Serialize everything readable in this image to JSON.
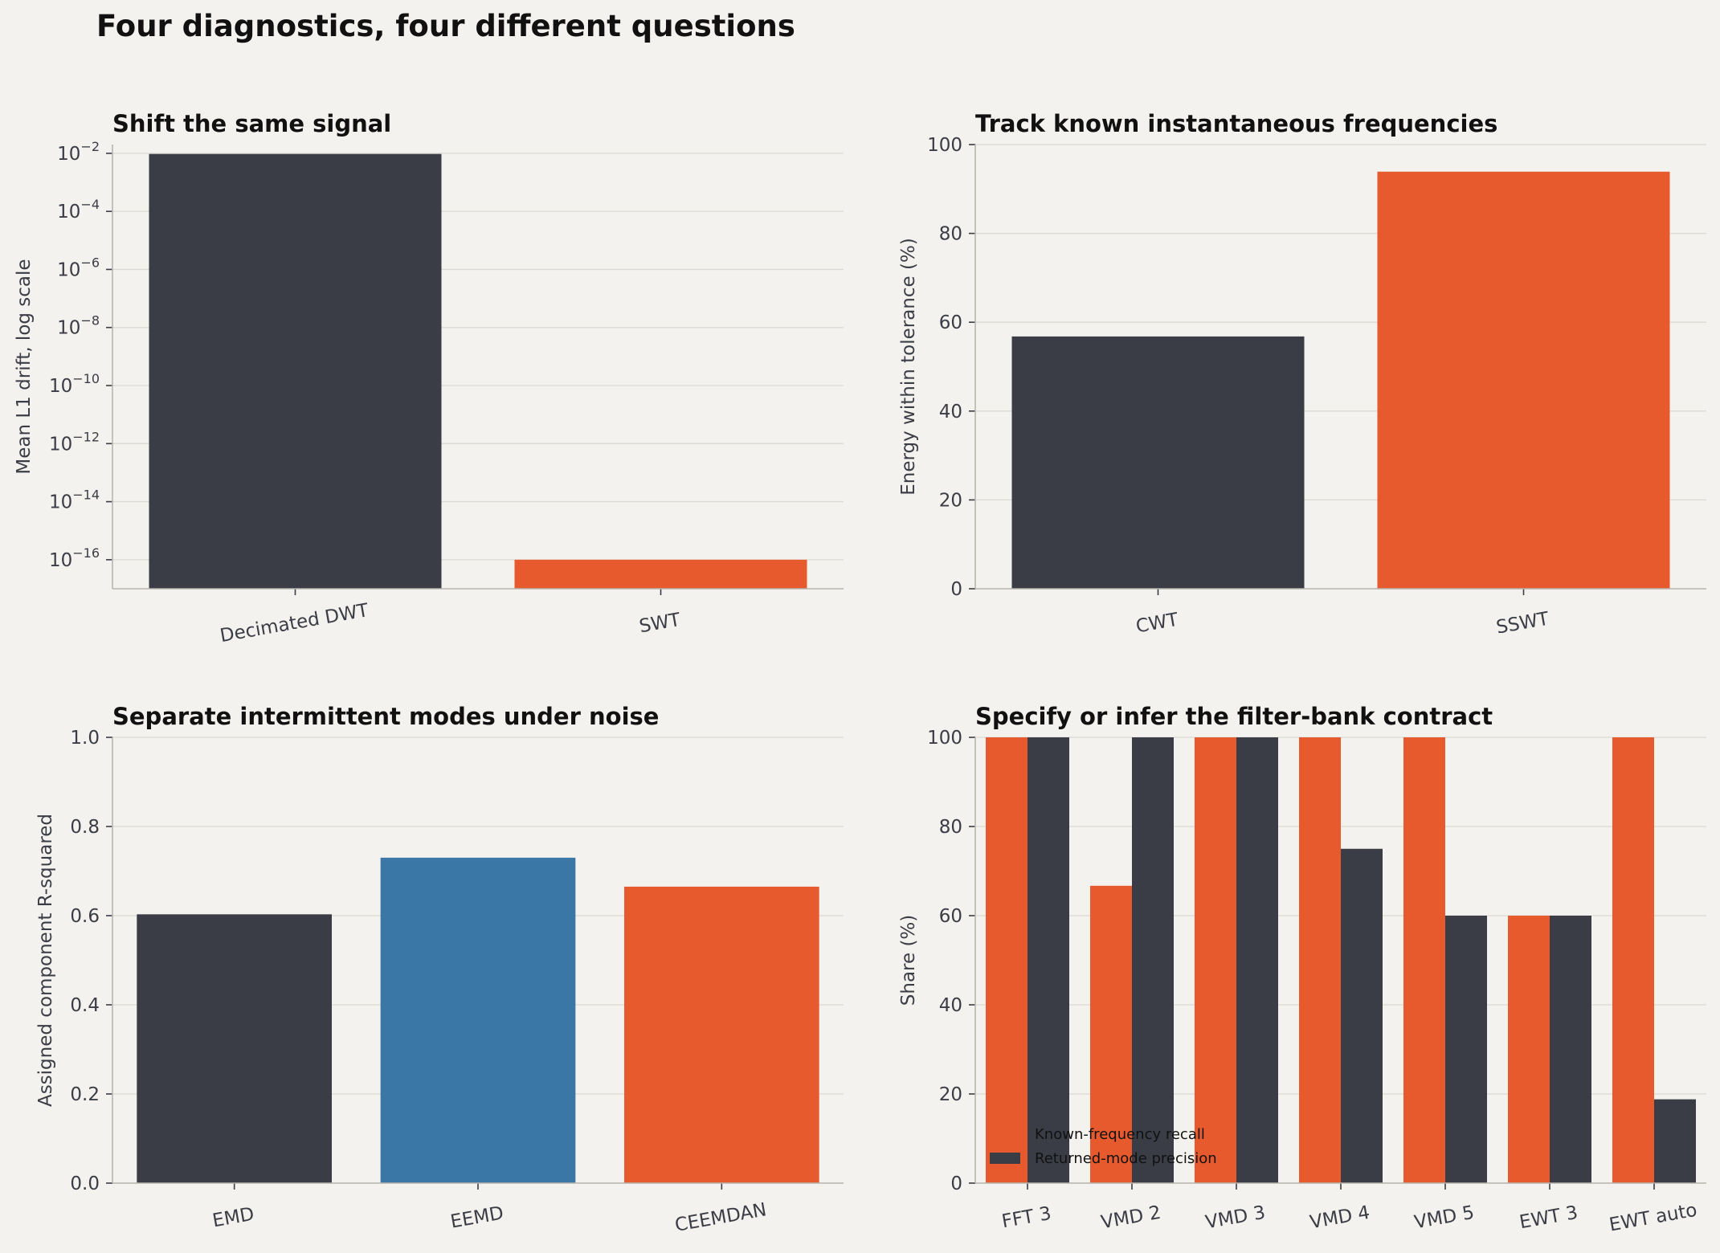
{
  "suptitle": "Four diagnostics, four different questions",
  "colors": {
    "dark": "#3a3d46",
    "orange": "#e65a2d",
    "blue": "#3a76a6",
    "background": "#f4f2ee"
  },
  "chart_data": [
    {
      "id": "shift",
      "type": "bar",
      "title": "Shift the same signal",
      "ylabel": "Mean L1 drift, log scale",
      "yscale": "log",
      "ylim": [
        1e-17,
        0.02
      ],
      "yticks": [
        {
          "value": 0.01,
          "base": "10",
          "exp": "−2"
        },
        {
          "value": 0.0001,
          "base": "10",
          "exp": "−4"
        },
        {
          "value": 1e-06,
          "base": "10",
          "exp": "−6"
        },
        {
          "value": 1e-08,
          "base": "10",
          "exp": "−8"
        },
        {
          "value": 1e-10,
          "base": "10",
          "exp": "−10"
        },
        {
          "value": 1e-12,
          "base": "10",
          "exp": "−12"
        },
        {
          "value": 1e-14,
          "base": "10",
          "exp": "−14"
        },
        {
          "value": 1e-16,
          "base": "10",
          "exp": "−16"
        }
      ],
      "categories": [
        "Decimated DWT",
        "SWT"
      ],
      "values": [
        0.0095,
        1e-16
      ],
      "colors": [
        "#3a3d46",
        "#e65a2d"
      ],
      "grid": true
    },
    {
      "id": "track",
      "type": "bar",
      "title": "Track known instantaneous frequencies",
      "ylabel": "Energy within tolerance (%)",
      "ylim": [
        0,
        100
      ],
      "yticks": [
        "0",
        "20",
        "40",
        "60",
        "80",
        "100"
      ],
      "categories": [
        "CWT",
        "SSWT"
      ],
      "values": [
        56.8,
        93.9
      ],
      "colors": [
        "#3a3d46",
        "#e65a2d"
      ],
      "grid": true
    },
    {
      "id": "separate",
      "type": "bar",
      "title": "Separate intermittent modes under noise",
      "ylabel": "Assigned component R-squared",
      "ylim": [
        0,
        1
      ],
      "yticks": [
        "0.0",
        "0.2",
        "0.4",
        "0.6",
        "0.8",
        "1.0"
      ],
      "categories": [
        "EMD",
        "EEMD",
        "CEEMDAN"
      ],
      "values": [
        0.603,
        0.73,
        0.665
      ],
      "colors": [
        "#3a3d46",
        "#3a76a6",
        "#e65a2d"
      ],
      "grid": true
    },
    {
      "id": "specify",
      "type": "bar",
      "title": "Specify or infer the filter-bank contract",
      "ylabel": "Share (%)",
      "ylim": [
        0,
        100
      ],
      "yticks": [
        "0",
        "20",
        "40",
        "60",
        "80",
        "100"
      ],
      "categories": [
        "FFT 3",
        "VMD 2",
        "VMD 3",
        "VMD 4",
        "VMD 5",
        "EWT 3",
        "EWT auto"
      ],
      "series": [
        {
          "name": "Known-frequency recall",
          "color": "#e65a2d",
          "values": [
            100,
            66.7,
            100,
            100,
            100,
            60,
            100
          ]
        },
        {
          "name": "Returned-mode precision",
          "color": "#3a3d46",
          "values": [
            100,
            100,
            100,
            75,
            60,
            60,
            18.8
          ]
        }
      ],
      "legend": "lower-left",
      "grid": true
    }
  ]
}
